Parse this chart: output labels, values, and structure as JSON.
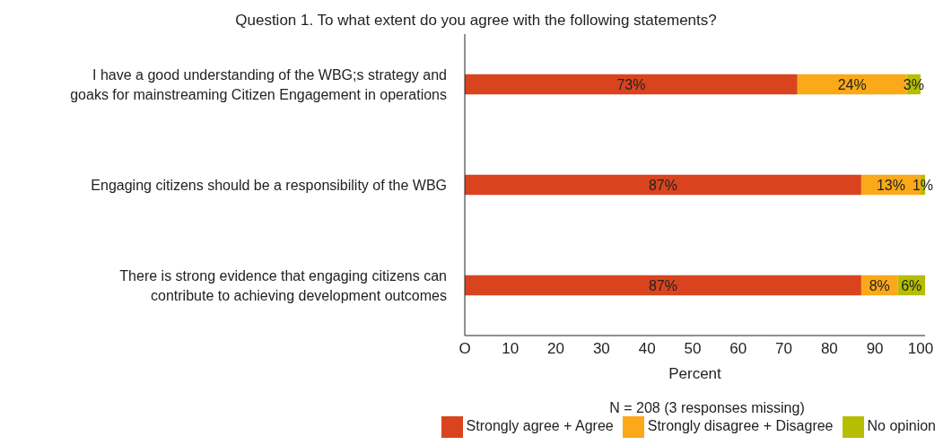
{
  "chart_data": {
    "type": "bar",
    "orientation": "horizontal",
    "stacked": true,
    "title": "Question 1. To what extent do you agree with the following statements?",
    "categories": [
      "I have a good understanding of the WBG;s strategy and goaks for mainstreaming Citizen Engagement in operations",
      "Engaging citizens should be a responsibility of the WBG",
      "There is strong evidence that engaging citizens can contribute to achieving development outcomes"
    ],
    "series": [
      {
        "name": "Strongly agree + Agree",
        "color": "#d9441e",
        "values": [
          73,
          87,
          87
        ],
        "value_labels": [
          "73%",
          "87%",
          "87%"
        ]
      },
      {
        "name": "Strongly disagree + Disagree",
        "color": "#fba919",
        "values": [
          24,
          13,
          8
        ],
        "value_labels": [
          "24%",
          "13%",
          "8%"
        ]
      },
      {
        "name": "No opinion",
        "color": "#b5be00",
        "values": [
          3,
          1,
          6
        ],
        "value_labels": [
          "3%",
          "1%",
          "6%"
        ]
      }
    ],
    "xlim": [
      0,
      101
    ],
    "xticks": [
      {
        "value": 0,
        "label": "O"
      },
      10,
      20,
      30,
      40,
      50,
      60,
      70,
      80,
      90,
      100
    ],
    "xlabel": "Percent",
    "annotations": [
      "N = 208 (3 responses missing)"
    ],
    "grid": false,
    "legend": "bottom right"
  }
}
